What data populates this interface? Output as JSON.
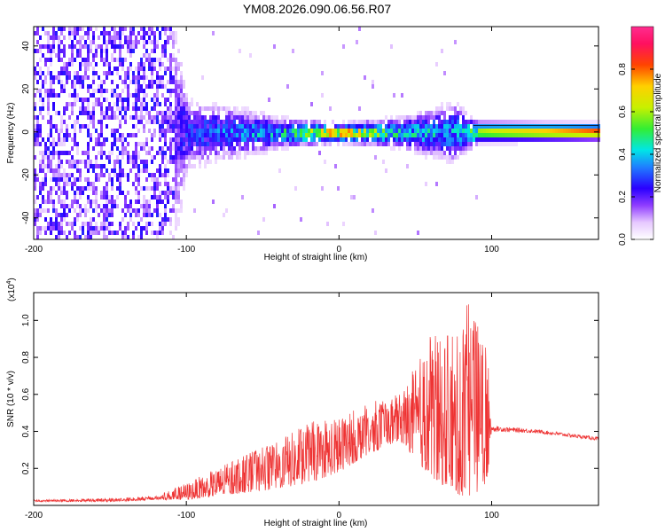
{
  "title": "YM08.2026.090.06.56.R07",
  "chart_data": [
    {
      "type": "heatmap",
      "title": "",
      "xlabel": "Height of straight line (km)",
      "ylabel": "Frequency (Hz)",
      "xlim": [
        -200,
        170
      ],
      "ylim": [
        -50,
        49
      ],
      "xticks": [
        -200,
        -100,
        0,
        100
      ],
      "xtick_labels": [
        "-200",
        "-100",
        "0",
        "100"
      ],
      "yticks": [
        -40,
        -20,
        0,
        20,
        40
      ],
      "ytick_labels": [
        "-40",
        "-20",
        "0",
        "20",
        "40"
      ],
      "colorbar": {
        "label": "Normalized spectral amplitude",
        "range": [
          0,
          1
        ],
        "ticks": [
          0,
          0.2,
          0.4,
          0.6,
          0.8
        ],
        "tick_labels": [
          "0.0",
          "0.2",
          "0.4",
          "0.6",
          "0.8"
        ]
      },
      "description_points": [
        {
          "x": -200,
          "spread_hz": 49,
          "amp": 0.18
        },
        {
          "x": -110,
          "spread_hz": 49,
          "amp": 0.18
        },
        {
          "x": -100,
          "spread_hz": 12,
          "amp": 0.3
        },
        {
          "x": -40,
          "spread_hz": 5,
          "amp": 0.45
        },
        {
          "x": 0,
          "spread_hz": 3,
          "amp": 0.8
        },
        {
          "x": 40,
          "spread_hz": 5,
          "amp": 0.45
        },
        {
          "x": 75,
          "spread_hz": 10,
          "amp": 0.4
        },
        {
          "x": 88,
          "spread_hz": 4,
          "amp": 0.6
        },
        {
          "x": 170,
          "spread_hz": 3,
          "amp": 0.85
        }
      ]
    },
    {
      "type": "line",
      "title": "",
      "xlabel": "Height of straight line (km)",
      "ylabel": "SNR (10 * v/v)",
      "y_multiplier": "(x10",
      "y_multiplier_exp": "4",
      "y_multiplier_close": ")",
      "xlim": [
        -200,
        170
      ],
      "ylim": [
        0,
        1.15
      ],
      "xticks": [
        -200,
        -100,
        0,
        100
      ],
      "xtick_labels": [
        "-200",
        "-100",
        "0",
        "100"
      ],
      "yticks": [
        0.2,
        0.4,
        0.6,
        0.8,
        1.0
      ],
      "ytick_labels": [
        "0.2",
        "0.4",
        "0.6",
        "0.8",
        "1.0"
      ],
      "color": "#ee3333",
      "series": [
        {
          "name": "SNR envelope",
          "x": [
            -200,
            -150,
            -120,
            -100,
            -80,
            -60,
            -40,
            -20,
            0,
            20,
            40,
            60,
            80,
            85,
            97,
            100,
            130,
            170
          ],
          "y_low": [
            0.02,
            0.02,
            0.03,
            0.03,
            0.05,
            0.07,
            0.09,
            0.12,
            0.18,
            0.28,
            0.35,
            0.15,
            0.05,
            0.05,
            0.1,
            0.4,
            0.39,
            0.35
          ],
          "y_high": [
            0.03,
            0.04,
            0.05,
            0.12,
            0.2,
            0.28,
            0.35,
            0.45,
            0.48,
            0.56,
            0.6,
            0.92,
            0.92,
            1.14,
            0.88,
            0.43,
            0.41,
            0.37
          ]
        }
      ]
    }
  ]
}
